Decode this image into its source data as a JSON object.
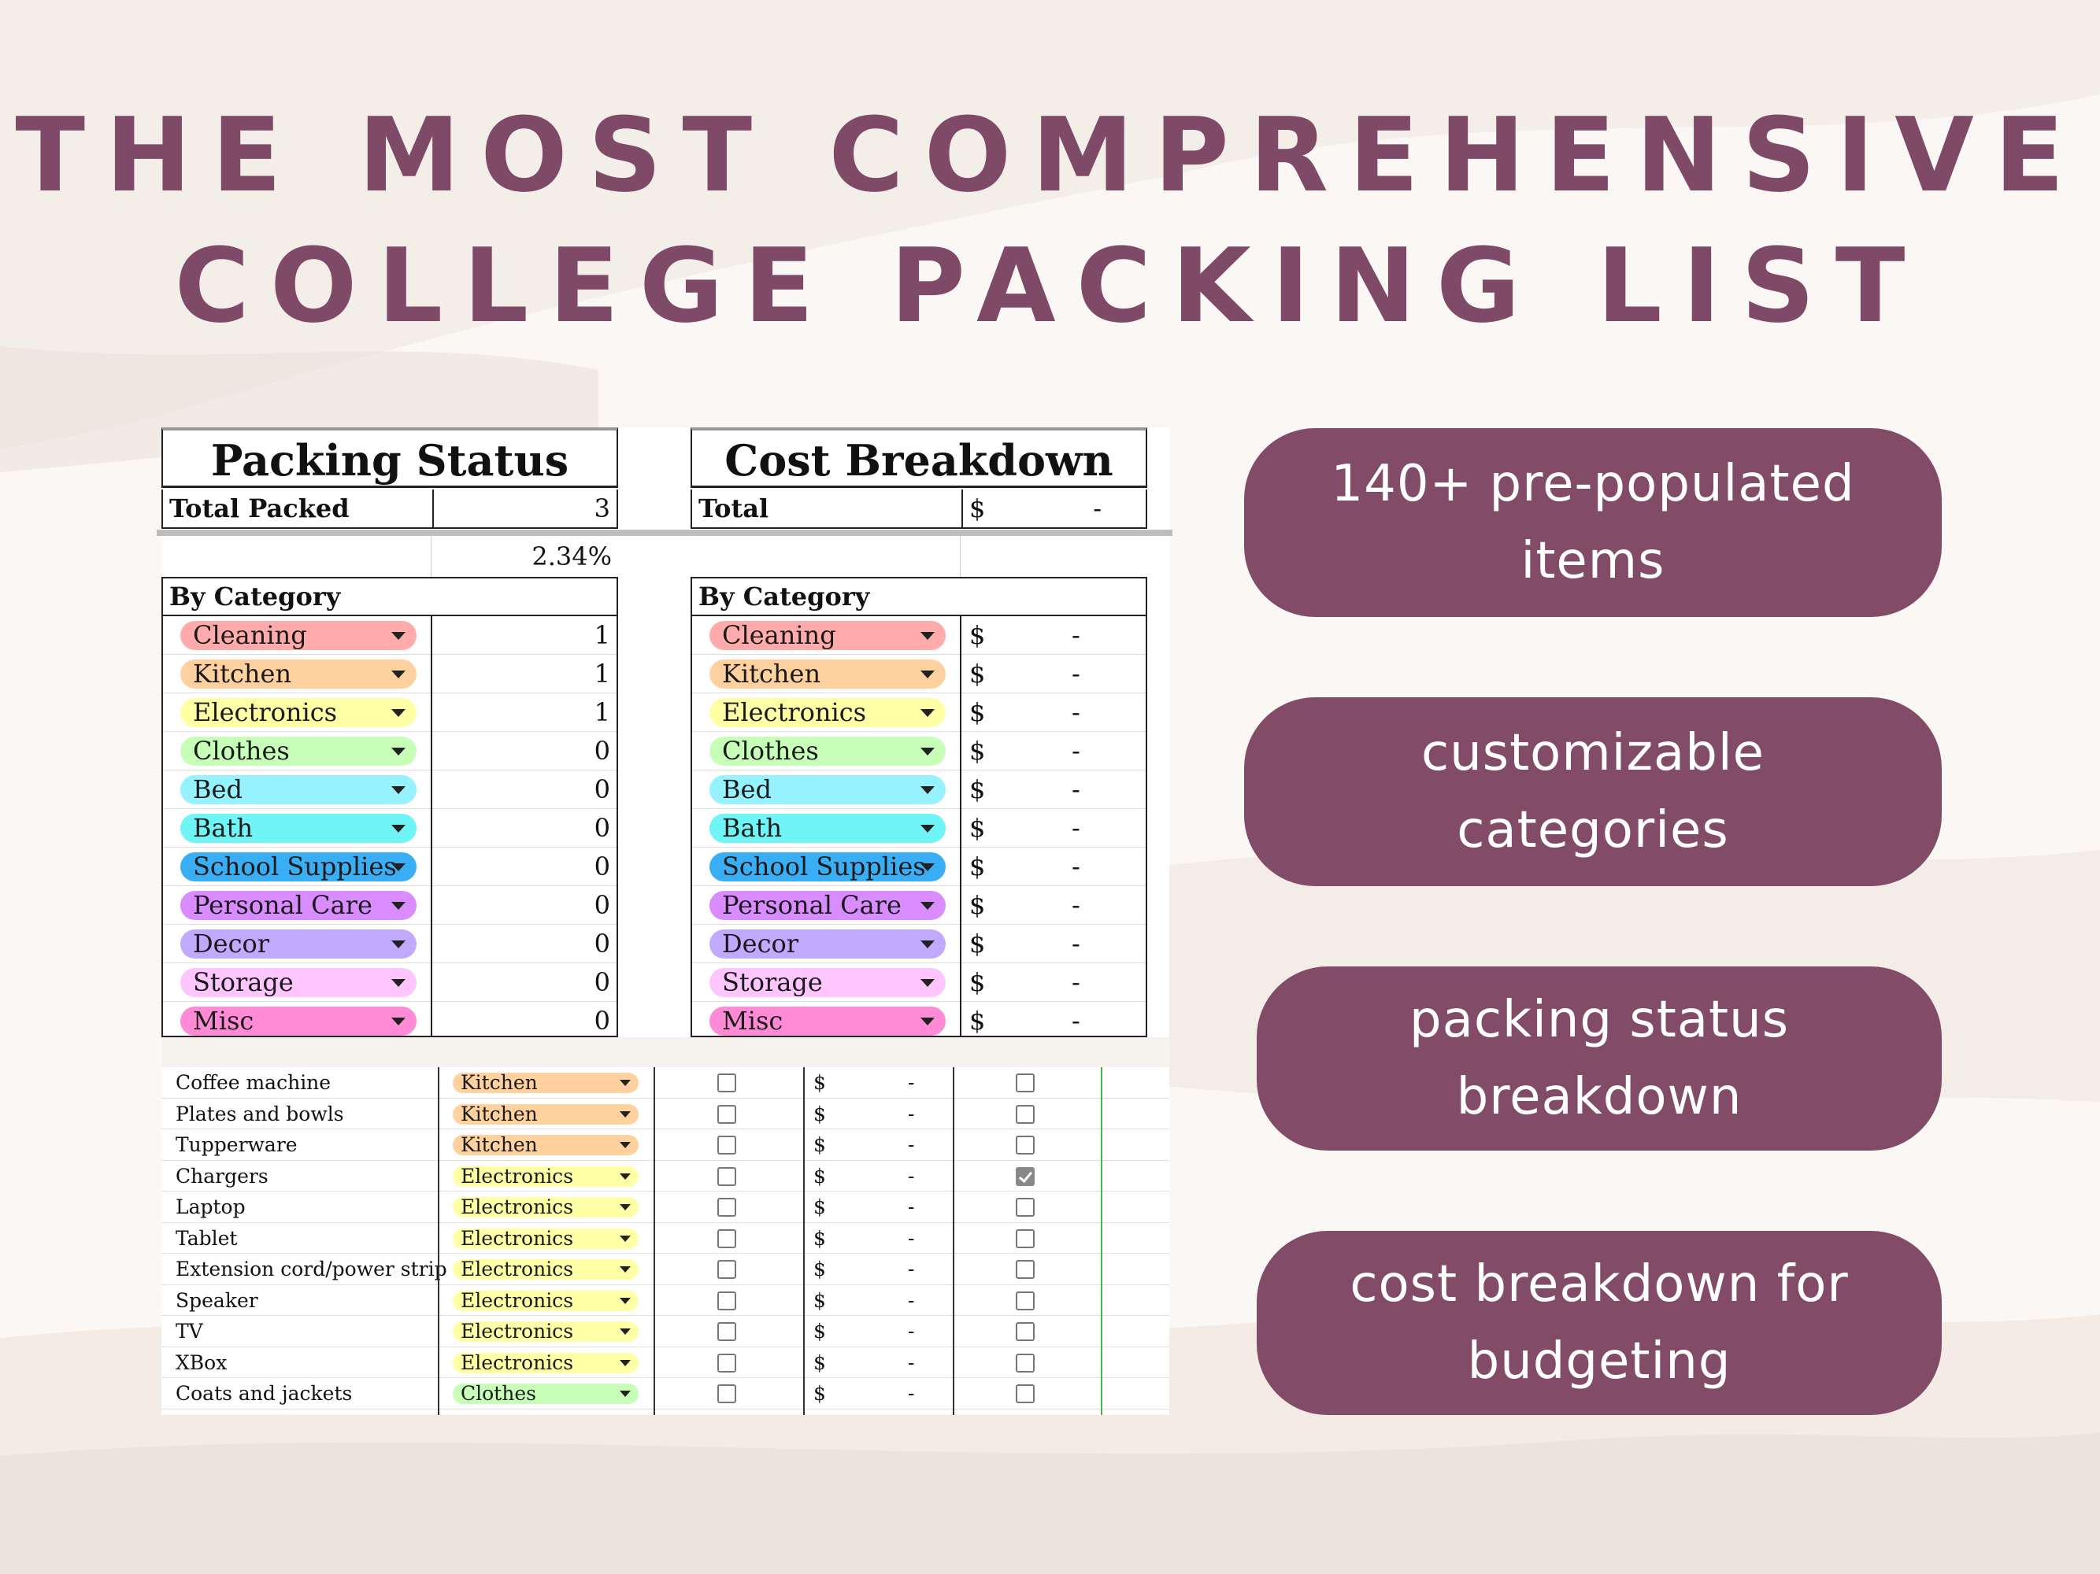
{
  "headline": {
    "line1": "THE MOST COMPREHENSIVE",
    "line2": "COLLEGE PACKING LIST"
  },
  "packing_status": {
    "title": "Packing Status",
    "total_label": "Total Packed",
    "total_value": "3",
    "percent": "2.34%",
    "by_category_label": "By Category",
    "categories": [
      {
        "name": "Cleaning",
        "count": "1",
        "color": "#ffabab"
      },
      {
        "name": "Kitchen",
        "count": "1",
        "color": "#ffd19e"
      },
      {
        "name": "Electronics",
        "count": "1",
        "color": "#ffffa6"
      },
      {
        "name": "Clothes",
        "count": "0",
        "color": "#c7ffb8"
      },
      {
        "name": "Bed",
        "count": "0",
        "color": "#96f2ff"
      },
      {
        "name": "Bath",
        "count": "0",
        "color": "#6ff5f5"
      },
      {
        "name": "School Supplies",
        "count": "0",
        "color": "#3aaef5"
      },
      {
        "name": "Personal Care",
        "count": "0",
        "color": "#d88cff"
      },
      {
        "name": "Decor",
        "count": "0",
        "color": "#bfaaff"
      },
      {
        "name": "Storage",
        "count": "0",
        "color": "#ffc5ff"
      },
      {
        "name": "Misc",
        "count": "0",
        "color": "#ff8ad6"
      }
    ]
  },
  "cost_breakdown": {
    "title": "Cost Breakdown",
    "total_label": "Total",
    "currency": "$",
    "dash": "-",
    "by_category_label": "By Category"
  },
  "items": [
    {
      "name": "Coffee machine",
      "category": "Kitchen",
      "color": "#ffd19e",
      "checked": false
    },
    {
      "name": "Plates and bowls",
      "category": "Kitchen",
      "color": "#ffd19e",
      "checked": false
    },
    {
      "name": "Tupperware",
      "category": "Kitchen",
      "color": "#ffd19e",
      "checked": false
    },
    {
      "name": "Chargers",
      "category": "Electronics",
      "color": "#ffffa6",
      "checked": true
    },
    {
      "name": "Laptop",
      "category": "Electronics",
      "color": "#ffffa6",
      "checked": false
    },
    {
      "name": "Tablet",
      "category": "Electronics",
      "color": "#ffffa6",
      "checked": false
    },
    {
      "name": "Extension cord/power strip",
      "category": "Electronics",
      "color": "#ffffa6",
      "checked": false
    },
    {
      "name": "Speaker",
      "category": "Electronics",
      "color": "#ffffa6",
      "checked": false
    },
    {
      "name": "TV",
      "category": "Electronics",
      "color": "#ffffa6",
      "checked": false
    },
    {
      "name": "XBox",
      "category": "Electronics",
      "color": "#ffffa6",
      "checked": false
    },
    {
      "name": "Coats and jackets",
      "category": "Clothes",
      "color": "#c7ffb8",
      "checked": false
    }
  ],
  "features": [
    {
      "line1": "140+ pre-populated",
      "line2": "items"
    },
    {
      "line1": "customizable",
      "line2": "categories"
    },
    {
      "line1": "packing status",
      "line2": "breakdown"
    },
    {
      "line1": "cost breakdown for",
      "line2": "budgeting"
    }
  ],
  "colors": {
    "accent": "#824b68",
    "headline": "#7e4a68"
  }
}
